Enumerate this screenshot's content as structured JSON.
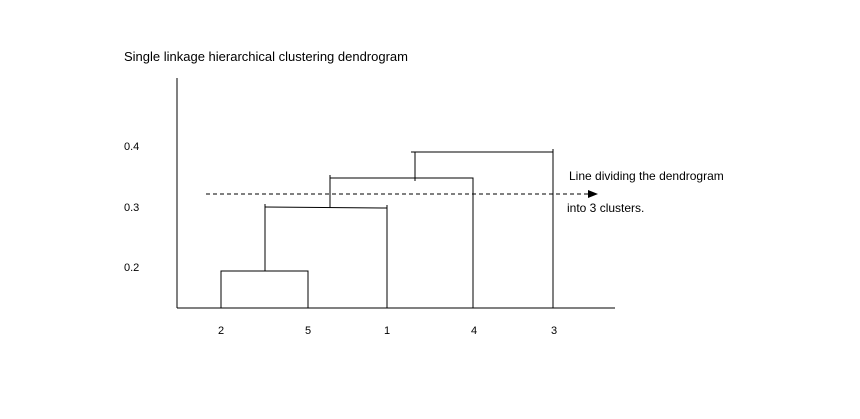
{
  "title": "Single linkage hierarchical clustering dendrogram",
  "colors": {
    "line": "#000000",
    "text": "#000000",
    "background": "#ffffff"
  },
  "chart_data": {
    "type": "dendrogram",
    "title": "Single linkage hierarchical clustering dendrogram",
    "leaves": [
      "2",
      "5",
      "1",
      "4",
      "3"
    ],
    "y_ticks": [
      "0.2",
      "0.3",
      "0.4"
    ],
    "merges": [
      {
        "left": "2",
        "right": "5",
        "height": 0.19
      },
      {
        "left": "2-5",
        "right": "1",
        "height": 0.3
      },
      {
        "left": "2-5-1",
        "right": "4",
        "height": 0.345
      },
      {
        "left": "2-5-1-4",
        "right": "3",
        "height": 0.39
      }
    ],
    "cut_line": {
      "height": 0.32,
      "style": "dashed",
      "arrow": true,
      "label_line1": "Line dividing the dendrogram",
      "label_line2": "into 3 clusters."
    }
  }
}
